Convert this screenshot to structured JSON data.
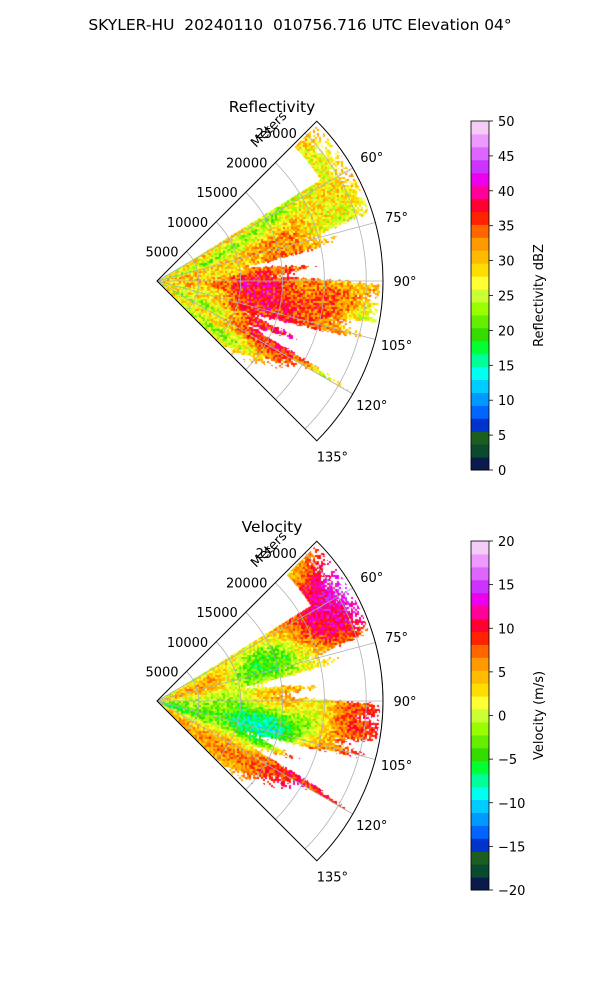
{
  "title": "SKYLER-HU  20240110  010756.716 UTC Elevation 04°",
  "chart_data": [
    {
      "type": "heatmap",
      "projection": "polar-sector",
      "title": "Reflectivity",
      "radial_label": "Meters",
      "radial_ticks": [
        5000,
        10000,
        15000,
        20000,
        25000
      ],
      "radial_tick_labels": [
        "5000",
        "10000",
        "15000",
        "20000",
        "25000"
      ],
      "r_max": 27000,
      "theta_range_deg": [
        45,
        135
      ],
      "theta_ticks_deg": [
        60,
        75,
        90,
        105,
        120,
        135
      ],
      "theta_tick_labels": [
        "60°",
        "75°",
        "90°",
        "105°",
        "120°",
        "135°"
      ],
      "grid": true,
      "colorbar": {
        "label": "Reflectivity dBZ",
        "range": [
          0,
          50
        ],
        "ticks": [
          0,
          5,
          10,
          15,
          20,
          25,
          30,
          35,
          40,
          45,
          50
        ],
        "tick_labels": [
          "0",
          "5",
          "10",
          "15",
          "20",
          "25",
          "30",
          "35",
          "40",
          "45",
          "50"
        ]
      },
      "colors": [
        "#0b1a4d",
        "#0a4a2e",
        "#1b5e20",
        "#0033cc",
        "#0066ff",
        "#0099ff",
        "#00ccff",
        "#00ffee",
        "#00ff99",
        "#00ff33",
        "#33dd00",
        "#66ee00",
        "#99ff00",
        "#ccff33",
        "#ffff33",
        "#ffdd00",
        "#ffbb00",
        "#ff9900",
        "#ff6600",
        "#ff2200",
        "#ff0033",
        "#ff0099",
        "#ee00ee",
        "#cc33ff",
        "#dd66ff",
        "#ee99ff",
        "#f5ccf5"
      ],
      "features": [
        {
          "theta_deg": 94,
          "r_frac": 0.45,
          "value": 42
        },
        {
          "theta_deg": 109,
          "r_frac": 0.5,
          "value": 38
        },
        {
          "theta_deg": 114,
          "r_frac": 0.62,
          "value": 40
        },
        {
          "theta_deg": 98,
          "r_frac": 0.72,
          "value": 36
        },
        {
          "theta_deg": 80,
          "r_frac": 0.58,
          "value": 35
        },
        {
          "theta_deg": 90,
          "r_frac": 0.15,
          "value": 32
        },
        {
          "theta_deg": 62,
          "r_frac": 0.85,
          "value": 28
        }
      ]
    },
    {
      "type": "heatmap",
      "projection": "polar-sector",
      "title": "Velocity",
      "radial_label": "Meters",
      "radial_ticks": [
        5000,
        10000,
        15000,
        20000,
        25000
      ],
      "radial_tick_labels": [
        "5000",
        "10000",
        "15000",
        "20000",
        "25000"
      ],
      "r_max": 27000,
      "theta_range_deg": [
        45,
        135
      ],
      "theta_ticks_deg": [
        60,
        75,
        90,
        105,
        120,
        135
      ],
      "theta_tick_labels": [
        "60°",
        "75°",
        "90°",
        "105°",
        "120°",
        "135°"
      ],
      "grid": true,
      "colorbar": {
        "label": "Velocity (m/s)",
        "range": [
          -20,
          20
        ],
        "ticks": [
          -20,
          -15,
          -10,
          -5,
          0,
          5,
          10,
          15,
          20
        ],
        "tick_labels": [
          "−20",
          "−15",
          "−10",
          "−5",
          "0",
          "5",
          "10",
          "15",
          "20"
        ]
      },
      "colors": [
        "#0b1a4d",
        "#0a4a2e",
        "#1b5e20",
        "#0033cc",
        "#0066ff",
        "#0099ff",
        "#00ccff",
        "#00ffee",
        "#00ff99",
        "#00ff33",
        "#33dd00",
        "#66ee00",
        "#99ff00",
        "#ccff33",
        "#ffff33",
        "#ffdd00",
        "#ffbb00",
        "#ff9900",
        "#ff6600",
        "#ff2200",
        "#ff0033",
        "#ff0099",
        "#ee00ee",
        "#cc33ff",
        "#dd66ff",
        "#ee99ff",
        "#f5ccf5"
      ],
      "features": [
        {
          "theta_deg": 88,
          "r_frac": 0.55,
          "value": 9
        },
        {
          "theta_deg": 93,
          "r_frac": 0.9,
          "value": 12
        },
        {
          "theta_deg": 62,
          "r_frac": 0.9,
          "value": 14
        },
        {
          "theta_deg": 116,
          "r_frac": 0.7,
          "value": 10
        },
        {
          "theta_deg": 103,
          "r_frac": 0.5,
          "value": -11
        },
        {
          "theta_deg": 72,
          "r_frac": 0.5,
          "value": -9
        },
        {
          "theta_deg": 95,
          "r_frac": 0.2,
          "value": 0
        }
      ]
    }
  ]
}
